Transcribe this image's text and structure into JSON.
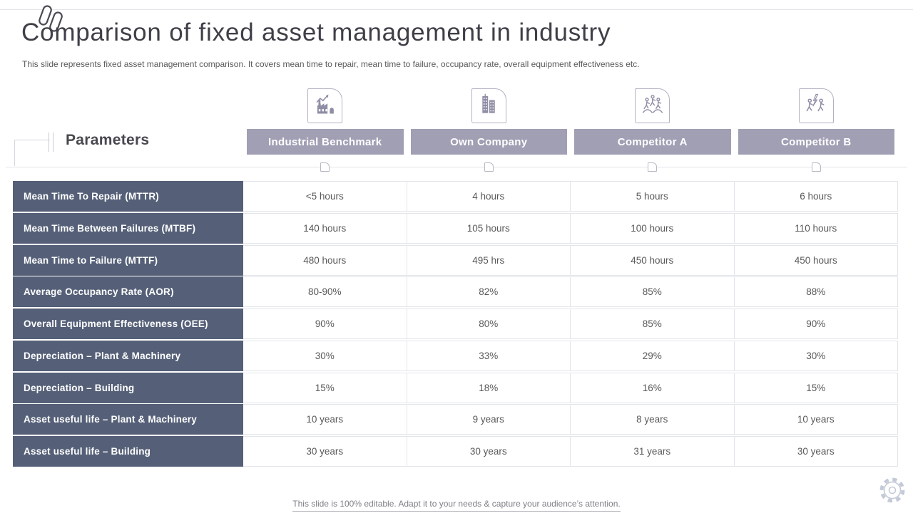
{
  "colors": {
    "header_bar_bg": "#a09fb4",
    "row_label_bg": "#556078",
    "accent_icon": "#8f8ea6",
    "title_text": "#3f3f48",
    "body_text": "#595959",
    "grid_line": "#e2e5ea"
  },
  "slide": {
    "title": "Comparison of fixed asset management in industry",
    "subtitle": "This slide represents fixed asset management comparison. It covers mean time to repair, mean time to failure, occupancy rate, overall equipment effectiveness etc.",
    "footer_note": "This slide is 100% editable. Adapt it to your needs & capture your audience’s attention."
  },
  "table": {
    "parameters_label": "Parameters",
    "columns": [
      {
        "label": "Industrial Benchmark",
        "icon": "factory-growth-icon"
      },
      {
        "label": "Own Company",
        "icon": "office-buildings-icon"
      },
      {
        "label": "Competitor A",
        "icon": "people-racing-icon"
      },
      {
        "label": "Competitor B",
        "icon": "runners-energy-icon"
      }
    ],
    "rows": [
      {
        "parameter": "Mean Time To Repair (MTTR)",
        "values": [
          "<5 hours",
          "4 hours",
          "5 hours",
          "6 hours"
        ]
      },
      {
        "parameter": "Mean Time Between Failures (MTBF)",
        "values": [
          "140 hours",
          "105 hours",
          "100 hours",
          "110 hours"
        ]
      },
      {
        "parameter": "Mean Time to Failure (MTTF)",
        "values": [
          "480 hours",
          "495 hrs",
          "450 hours",
          "450 hours"
        ]
      },
      {
        "parameter": "Average Occupancy Rate (AOR)",
        "values": [
          "80-90%",
          "82%",
          "85%",
          "88%"
        ]
      },
      {
        "parameter": "Overall Equipment Effectiveness (OEE)",
        "values": [
          "90%",
          "80%",
          "85%",
          "90%"
        ]
      },
      {
        "parameter": "Depreciation – Plant & Machinery",
        "values": [
          "30%",
          "33%",
          "29%",
          "30%"
        ]
      },
      {
        "parameter": "Depreciation – Building",
        "values": [
          "15%",
          "18%",
          "16%",
          "15%"
        ]
      },
      {
        "parameter": "Asset useful life – Plant & Machinery",
        "values": [
          "10 years",
          "9 years",
          "8 years",
          "10 years"
        ]
      },
      {
        "parameter": "Asset useful life – Building",
        "values": [
          "30 years",
          "30 years",
          "31 years",
          "30 years"
        ]
      }
    ]
  }
}
